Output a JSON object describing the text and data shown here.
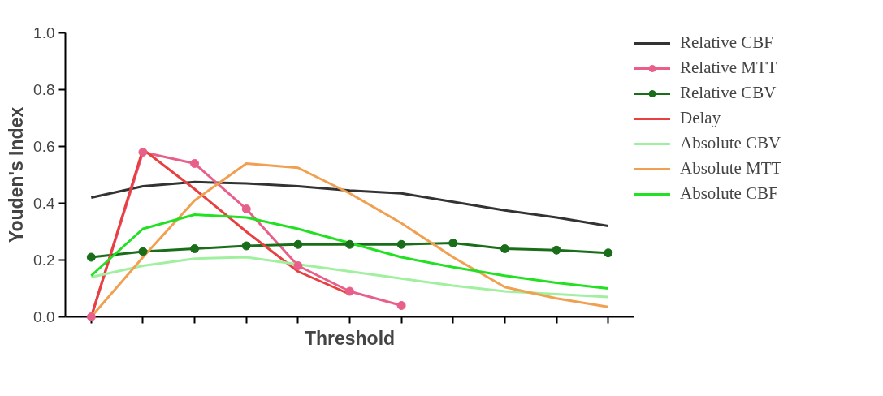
{
  "chart_data": {
    "type": "line",
    "xlabel": "Threshold",
    "ylabel": "Youden's Index",
    "categories": [
      null,
      null,
      null,
      null,
      null,
      null,
      null,
      null,
      null,
      null,
      null
    ],
    "ylim": [
      0,
      1
    ],
    "yticks": [
      {
        "value": 0,
        "label": "0.0"
      },
      0.2,
      0.4,
      0.6,
      0.8,
      {
        "value": 1,
        "label": "1.0"
      }
    ],
    "grid": false,
    "legend": "right",
    "marker": "none",
    "line_style": "solid",
    "series": [
      {
        "name": "Relative CBF",
        "color": "#333333",
        "values": [
          0.42,
          0.46,
          0.475,
          0.47,
          0.46,
          0.445,
          0.435,
          0.405,
          0.375,
          0.35,
          0.32
        ]
      },
      {
        "name": "Relative MTT",
        "color": "#e8608a",
        "marker": "circle",
        "values": [
          0.0,
          0.58,
          0.54,
          0.38,
          0.18,
          0.09,
          0.04,
          null,
          null,
          null,
          null
        ]
      },
      {
        "name": "Relative CBV",
        "color": "#1a6e1a",
        "marker": "circle",
        "values": [
          0.21,
          0.23,
          0.24,
          0.25,
          0.255,
          0.255,
          0.255,
          0.26,
          0.24,
          0.235,
          0.225
        ]
      },
      {
        "name": "Delay",
        "color": "#e84040",
        "values": [
          0.0,
          0.59,
          0.45,
          0.3,
          0.16,
          0.08,
          null,
          null,
          null,
          null,
          null
        ]
      },
      {
        "name": "Absolute CBV",
        "color": "#a0f0a0",
        "values": [
          0.14,
          0.18,
          0.205,
          0.21,
          0.185,
          0.16,
          0.135,
          0.11,
          0.09,
          0.08,
          0.07
        ]
      },
      {
        "name": "Absolute MTT",
        "color": "#f0a050",
        "values": [
          0.0,
          0.21,
          0.41,
          0.54,
          0.525,
          0.435,
          0.33,
          0.21,
          0.105,
          0.065,
          0.035
        ]
      },
      {
        "name": "Absolute CBF",
        "color": "#22e022",
        "values": [
          0.145,
          0.31,
          0.36,
          0.35,
          0.31,
          0.26,
          0.21,
          0.175,
          0.145,
          0.12,
          0.1
        ]
      }
    ]
  }
}
